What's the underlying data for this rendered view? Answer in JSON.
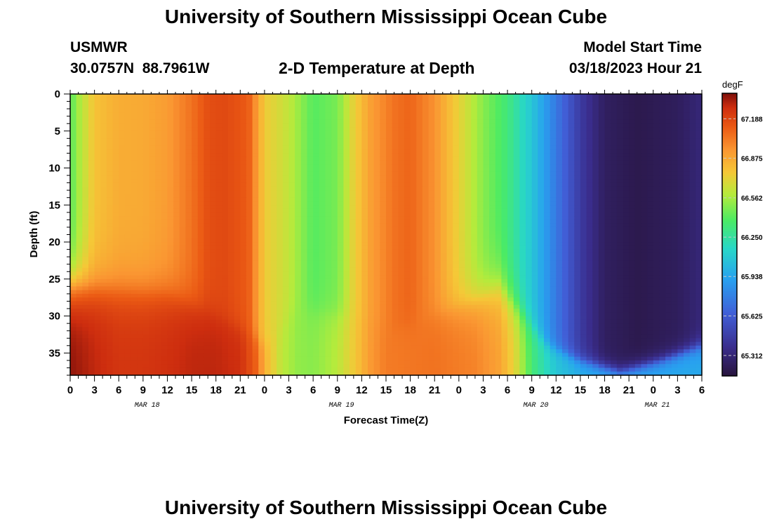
{
  "header": {
    "title": "University of Southern Mississippi Ocean Cube",
    "station": "USMWR",
    "coords": "30.0757N  88.7961W",
    "product": "2-D Temperature at Depth",
    "model_label": "Model Start Time",
    "model_time": "03/18/2023 Hour 21"
  },
  "footer": {
    "title": "University of Southern Mississippi Ocean Cube"
  },
  "chart_data": {
    "type": "heatmap",
    "title": "2-D Temperature at Depth",
    "xlabel": "Forecast Time(Z)",
    "ylabel": "Depth (ft)",
    "x_tick_labels": [
      "0",
      "3",
      "6",
      "9",
      "12",
      "15",
      "18",
      "21",
      "0",
      "3",
      "6",
      "9",
      "12",
      "15",
      "18",
      "21",
      "0",
      "3",
      "6",
      "9",
      "12",
      "15",
      "18",
      "21",
      "0",
      "3",
      "6"
    ],
    "x_date_labels": [
      {
        "text": "MAR 18",
        "at_hour": 9.5
      },
      {
        "text": "MAR 19",
        "at_hour": 33.5
      },
      {
        "text": "MAR 20",
        "at_hour": 57.5
      },
      {
        "text": "MAR 21",
        "at_hour": 72.5
      }
    ],
    "x_range_hours": [
      0,
      78
    ],
    "y_tick_labels": [
      "0",
      "5",
      "10",
      "15",
      "20",
      "25",
      "30",
      "35"
    ],
    "y_ticks": [
      0,
      5,
      10,
      15,
      20,
      25,
      30,
      35
    ],
    "y_range_ft": [
      0,
      38
    ],
    "y_reversed": true,
    "colorbar": {
      "unit": "degF",
      "labels": [
        "67.188",
        "66.875",
        "66.562",
        "66.250",
        "65.938",
        "65.625",
        "65.312"
      ],
      "label_values": [
        67.188,
        66.875,
        66.562,
        66.25,
        65.938,
        65.625,
        65.312
      ],
      "range": [
        65.15,
        67.39
      ]
    },
    "surface_temp_profile": {
      "hours": [
        0,
        1,
        3,
        6,
        9,
        12,
        15,
        17,
        19,
        22,
        24,
        27,
        30,
        33,
        35,
        37,
        40,
        42,
        45,
        48,
        51,
        54,
        57,
        60,
        63,
        66,
        70,
        75,
        78
      ],
      "degF": [
        66.4,
        66.55,
        66.78,
        66.86,
        66.87,
        66.92,
        67.05,
        67.16,
        67.18,
        67.12,
        66.75,
        66.62,
        66.4,
        66.47,
        66.72,
        66.9,
        67.05,
        67.09,
        66.95,
        66.72,
        66.5,
        66.33,
        66.08,
        65.75,
        65.45,
        65.25,
        65.2,
        65.24,
        65.32
      ]
    },
    "bottom_temp_profile": {
      "hours": [
        0,
        3,
        6,
        9,
        12,
        15,
        18,
        21,
        23,
        24,
        26,
        28,
        30,
        33,
        35,
        37,
        39,
        45,
        50,
        53,
        55,
        57,
        60,
        63,
        66,
        70,
        75,
        78
      ],
      "degF": [
        67.37,
        67.3,
        67.25,
        67.25,
        67.27,
        67.3,
        67.3,
        67.27,
        67.1,
        66.85,
        66.62,
        66.52,
        66.5,
        66.6,
        66.75,
        66.92,
        67.02,
        67.05,
        67.0,
        66.9,
        66.7,
        66.35,
        66.08,
        65.98,
        65.96,
        65.95,
        65.95,
        65.95
      ]
    },
    "mixed_layer_depth_ft": {
      "hours": [
        0,
        6,
        12,
        18,
        23,
        24,
        28,
        34,
        40,
        45,
        50,
        53,
        56,
        59,
        63,
        68,
        73,
        78
      ],
      "depth": [
        26,
        26.5,
        27,
        30,
        33,
        34,
        29,
        30,
        32,
        30,
        28,
        26,
        30,
        34,
        36,
        37.5,
        36,
        34
      ]
    }
  }
}
